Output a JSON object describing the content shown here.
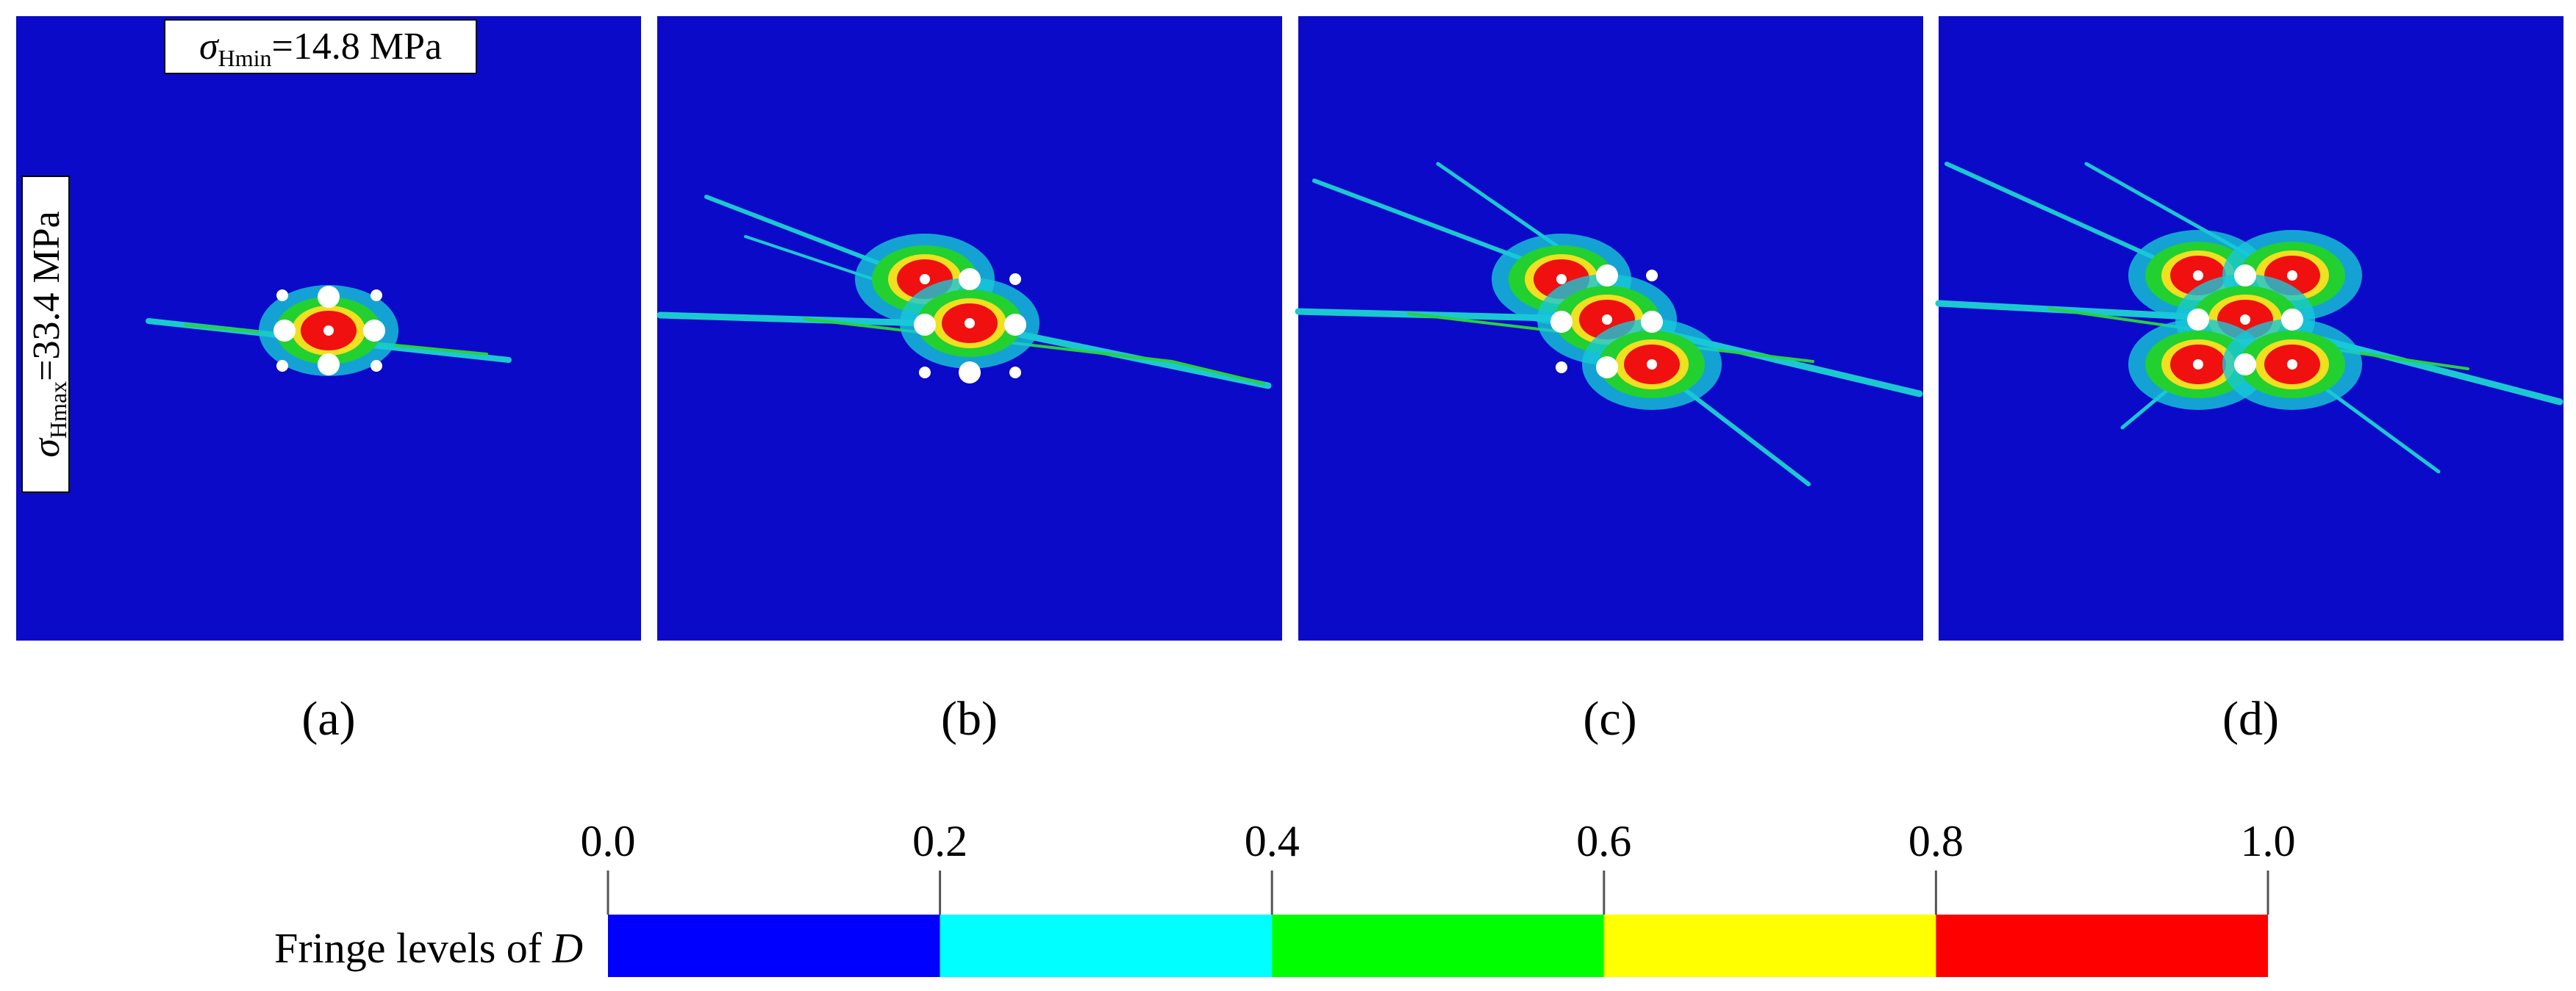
{
  "panels": [
    {
      "label": "(a)"
    },
    {
      "label": "(b)"
    },
    {
      "label": "(c)"
    },
    {
      "label": "(d)"
    }
  ],
  "annotations": {
    "sigma_hmin": {
      "symbol": "σ",
      "subscript": "Hmin",
      "text": "=14.8 MPa"
    },
    "sigma_hmax": {
      "symbol": "σ",
      "subscript": "Hmax",
      "text": "=33.4 MPa"
    }
  },
  "colorbar": {
    "title": "Fringe levels of",
    "variable": "D",
    "lim": [
      0,
      1
    ],
    "ticks": [
      {
        "value": 0,
        "label": "0.0"
      },
      0.2,
      0.4,
      0.6,
      0.8,
      {
        "value": 1,
        "label": "1.0"
      }
    ],
    "colors": [
      "#0000ff",
      "#00ffff",
      "#00ff00",
      "#ffff00",
      "#ff0000"
    ]
  }
}
